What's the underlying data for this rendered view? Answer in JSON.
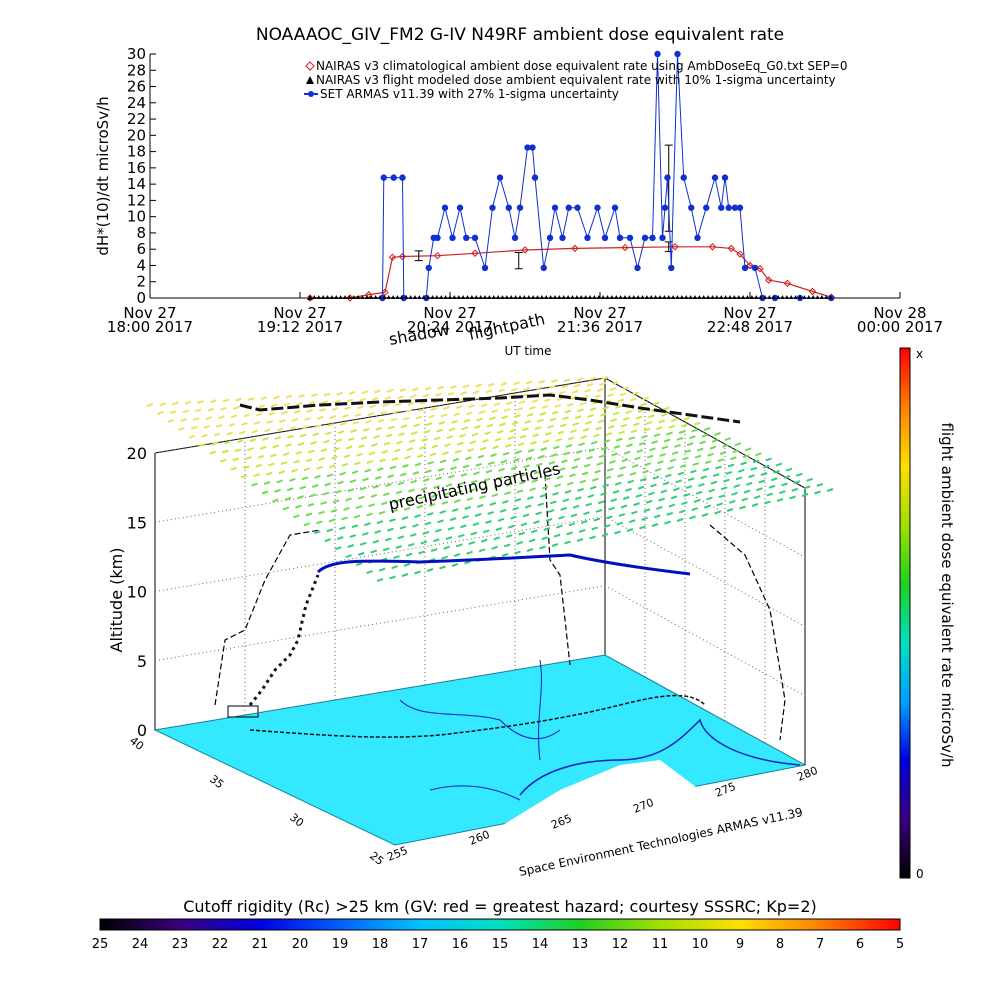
{
  "chart_data": [
    {
      "type": "line",
      "title": "NOAAAOC_GIV_FM2 G-IV    N49RF   ambient dose equivalent rate",
      "xlabel": "UT time",
      "ylabel": "dH*(10)/dt microSv/h",
      "ylim": [
        0,
        30
      ],
      "yticks": [
        0,
        2,
        4,
        6,
        8,
        10,
        12,
        14,
        16,
        18,
        20,
        22,
        24,
        26,
        28,
        30
      ],
      "xlim_hours": [
        18.0,
        24.0
      ],
      "xticks": [
        {
          "t": 18.0,
          "line1": "Nov 27",
          "line2": "18:00 2017"
        },
        {
          "t": 19.2,
          "line1": "Nov 27",
          "line2": "19:12 2017"
        },
        {
          "t": 20.4,
          "line1": "Nov 27",
          "line2": "20:24 2017"
        },
        {
          "t": 21.6,
          "line1": "Nov 27",
          "line2": "21:36 2017"
        },
        {
          "t": 22.8,
          "line1": "Nov 27",
          "line2": "22:48 2017"
        },
        {
          "t": 24.0,
          "line1": "Nov 28",
          "line2": "00:00 2017"
        }
      ],
      "grid": false,
      "legend_position": "top-right",
      "series": [
        {
          "name": "NAIRAS v3 climatological ambient dose equivalent rate using AmbDoseEq_G0.txt SEP=0",
          "color": "#d02020",
          "marker": "diamond",
          "x": [
            19.28,
            19.6,
            19.75,
            19.88,
            19.94,
            20.02,
            20.3,
            20.6,
            21.0,
            21.4,
            21.8,
            22.2,
            22.5,
            22.65,
            22.72,
            22.8,
            22.88,
            22.95,
            23.1,
            23.3,
            23.45
          ],
          "y": [
            0.0,
            0.0,
            0.4,
            0.7,
            5.0,
            5.1,
            5.2,
            5.5,
            5.9,
            6.1,
            6.2,
            6.3,
            6.3,
            6.1,
            5.4,
            4.0,
            3.6,
            2.2,
            1.8,
            0.8,
            0.1
          ]
        },
        {
          "name": "NAIRAS v3 flight modeled dose ambient equivalent rate with 10% 1-sigma uncertainty",
          "color": "#000000",
          "marker": "triangle",
          "x": [
            19.28,
            23.45
          ],
          "y": [
            0.0,
            0.0
          ],
          "errorbars": [
            {
              "x": 20.15,
              "y": 5.2,
              "err": 0.6
            },
            {
              "x": 20.95,
              "y": 4.6,
              "err": 1.0
            },
            {
              "x": 22.15,
              "y": 13.5,
              "err": 5.3
            },
            {
              "x": 22.15,
              "y": 6.3,
              "err": 0.6
            }
          ]
        },
        {
          "name": "SET ARMAS v11.39 with 27% 1-sigma uncertainty",
          "color": "#1030d0",
          "marker": "circle",
          "x": [
            19.86,
            19.87,
            19.95,
            20.02,
            20.03,
            20.21,
            20.23,
            20.27,
            20.3,
            20.36,
            20.42,
            20.48,
            20.53,
            20.6,
            20.68,
            20.74,
            20.8,
            20.87,
            20.92,
            20.96,
            21.02,
            21.06,
            21.08,
            21.15,
            21.2,
            21.24,
            21.3,
            21.35,
            21.42,
            21.5,
            21.58,
            21.64,
            21.72,
            21.76,
            21.84,
            21.9,
            21.96,
            22.02,
            22.06,
            22.1,
            22.12,
            22.14,
            22.17,
            22.22,
            22.27,
            22.33,
            22.38,
            22.45,
            22.52,
            22.57,
            22.6,
            22.63,
            22.68,
            22.72,
            22.76,
            22.84,
            22.9,
            23.0,
            23.2,
            23.45
          ],
          "y": [
            0.0,
            14.8,
            14.8,
            14.8,
            0.0,
            0.0,
            3.7,
            7.4,
            7.4,
            11.1,
            7.4,
            11.1,
            7.4,
            7.4,
            3.7,
            11.1,
            14.8,
            11.1,
            7.4,
            11.1,
            18.5,
            18.5,
            14.8,
            3.7,
            7.4,
            11.1,
            7.4,
            11.1,
            11.1,
            7.4,
            11.1,
            7.4,
            11.1,
            7.4,
            7.4,
            3.7,
            7.4,
            7.4,
            30.0,
            7.4,
            11.1,
            14.8,
            3.7,
            30.0,
            14.8,
            11.1,
            7.4,
            11.1,
            14.8,
            11.1,
            14.8,
            11.1,
            11.1,
            11.1,
            3.7,
            3.7,
            0.0,
            0.0,
            0.0,
            0.0
          ]
        }
      ]
    },
    {
      "type": "scatter",
      "title": "",
      "annotations": [
        "shadow",
        "flightpath",
        "precipitating particles",
        "Space Environment Technologies ARMAS v11.39"
      ],
      "zlabel": "Altitude (km)",
      "zticks": [
        0,
        5,
        10,
        15,
        20
      ],
      "zlim": [
        0,
        20
      ],
      "lon_ticks": [
        255,
        260,
        265,
        270,
        275,
        280
      ],
      "lat_ticks": [
        25,
        30,
        35,
        40
      ],
      "flight_altitude_km": 12.3,
      "colorbar": {
        "label": "flight ambient dose equivalent rate microSv/h",
        "top_label": "x",
        "bottom_label": "0",
        "colors": [
          "#000000",
          "#3a0080",
          "#0000e0",
          "#00a0ff",
          "#00e0c0",
          "#20d020",
          "#a0e000",
          "#ffe000",
          "#ff8000",
          "#ff0000"
        ]
      },
      "bottom_colorbar": {
        "title": "Cutoff rigidity (Rc) >25 km (GV: red = greatest hazard; courtesy SSSRC; Kp=2)",
        "ticks": [
          "25",
          "24",
          "23",
          "22",
          "21",
          "20",
          "19",
          "18",
          "17",
          "16",
          "15",
          "14",
          "13",
          "12",
          "11",
          "10",
          "9",
          "8",
          "7",
          "6",
          "5"
        ],
        "colors": [
          "#000000",
          "#3a0080",
          "#0000e0",
          "#0060ff",
          "#00c0ff",
          "#00e0c0",
          "#20d020",
          "#a0e000",
          "#ffe000",
          "#ff8000",
          "#ff0000"
        ]
      }
    }
  ]
}
